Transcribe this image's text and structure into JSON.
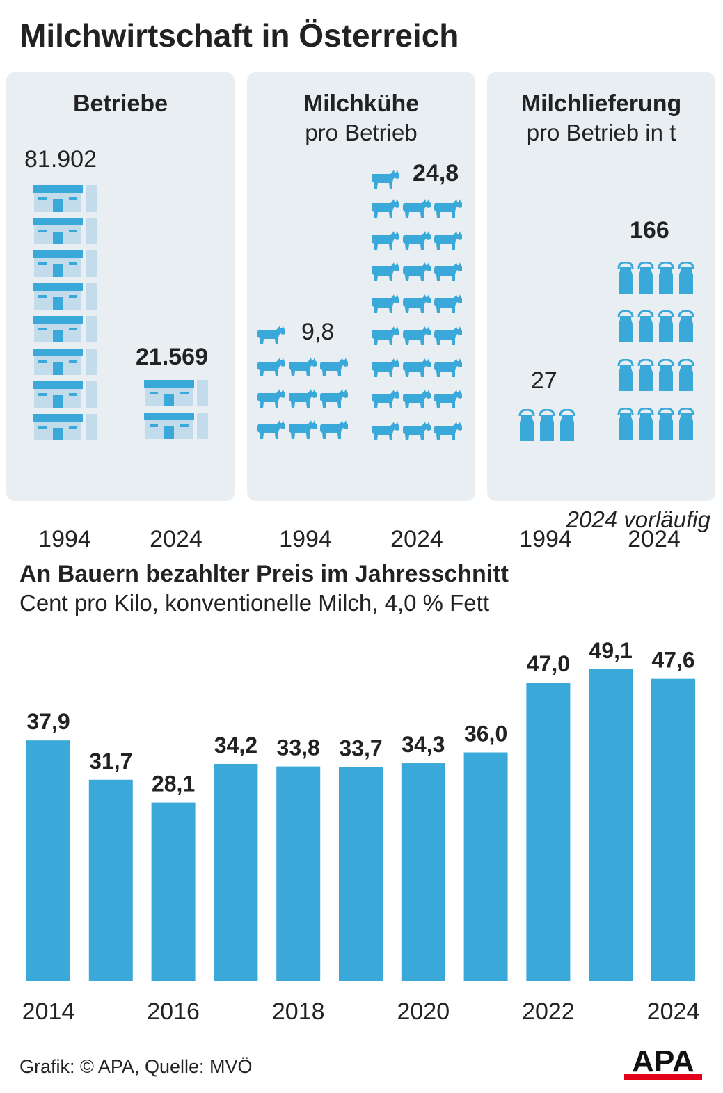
{
  "title": "Milchwirtschaft in Österreich",
  "colors": {
    "accent": "#3aa8d8",
    "icon_light": "#c2dcec",
    "panel_bg": "#e9eef3",
    "text": "#222222",
    "logo_red": "#e2001a"
  },
  "panels": {
    "betriebe": {
      "title": "Betriebe",
      "value_1994": "81.902",
      "value_2024": "21.569",
      "year_1": "1994",
      "year_2": "2024",
      "icon": "farm-building-icon"
    },
    "milchkuehe": {
      "title": "Milchkühe",
      "subtitle": "pro Betrieb",
      "value_1994": "9,8",
      "value_2024": "24,8",
      "year_1": "1994",
      "year_2": "2024",
      "icon": "cow-icon"
    },
    "milchlieferung": {
      "title": "Milchlieferung",
      "subtitle": "pro Betrieb in t",
      "value_1994": "27",
      "value_2024": "166",
      "year_1": "1994",
      "year_2": "2024",
      "icon": "milk-can-icon"
    }
  },
  "note": "2024 vorläufig",
  "chart_title": "An Bauern bezahlter Preis im Jahresschnitt",
  "chart_subtitle": "Cent pro Kilo, konventionelle Milch, 4,0 % Fett",
  "chart_data": {
    "type": "bar",
    "title": "An Bauern bezahlter Preis im Jahresschnitt",
    "subtitle": "Cent pro Kilo, konventionelle Milch, 4,0 % Fett",
    "categories": [
      "2014",
      "2015",
      "2016",
      "2017",
      "2018",
      "2019",
      "2020",
      "2021",
      "2022",
      "2023",
      "2024"
    ],
    "values": [
      37.9,
      31.7,
      28.1,
      34.2,
      33.8,
      33.7,
      34.3,
      36.0,
      47.0,
      49.1,
      47.6
    ],
    "value_labels": [
      "37,9",
      "31,7",
      "28,1",
      "34,2",
      "33,8",
      "33,7",
      "34,3",
      "36,0",
      "47,0",
      "49,1",
      "47,6"
    ],
    "x_tick_labels": [
      "2014",
      "2016",
      "2018",
      "2020",
      "2022",
      "2024"
    ],
    "xlabel": "",
    "ylabel": "",
    "ylim": [
      0,
      50
    ],
    "grid": false,
    "color": "#3aa8d8"
  },
  "footer": "Grafik: © APA, Quelle: MVÖ",
  "logo_text": "APA"
}
